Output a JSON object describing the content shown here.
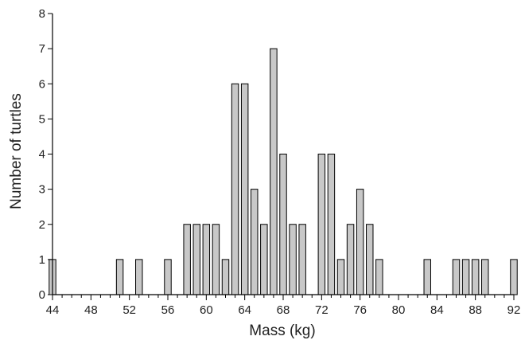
{
  "chart_data": {
    "type": "bar",
    "title": "",
    "xlabel": "Mass (kg)",
    "ylabel": "Number of turtles",
    "xlim": [
      44,
      92
    ],
    "ylim": [
      0,
      8
    ],
    "x_tick_labels": [
      "44",
      "48",
      "52",
      "56",
      "60",
      "64",
      "68",
      "72",
      "76",
      "80",
      "84",
      "88",
      "92"
    ],
    "y_tick_labels": [
      "0",
      "1",
      "2",
      "3",
      "4",
      "5",
      "6",
      "7",
      "8"
    ],
    "x": [
      44,
      51,
      53,
      56,
      58,
      59,
      60,
      61,
      62,
      63,
      64,
      65,
      66,
      67,
      68,
      69,
      70,
      72,
      73,
      74,
      75,
      76,
      77,
      78,
      83,
      86,
      87,
      88,
      89,
      92
    ],
    "values": [
      1,
      1,
      1,
      1,
      2,
      2,
      2,
      2,
      1,
      6,
      6,
      3,
      2,
      7,
      4,
      2,
      2,
      4,
      4,
      1,
      2,
      3,
      2,
      1,
      1,
      1,
      1,
      1,
      1,
      1
    ],
    "bar_color": "#c8c8c8",
    "grid": false,
    "legend": "none"
  }
}
